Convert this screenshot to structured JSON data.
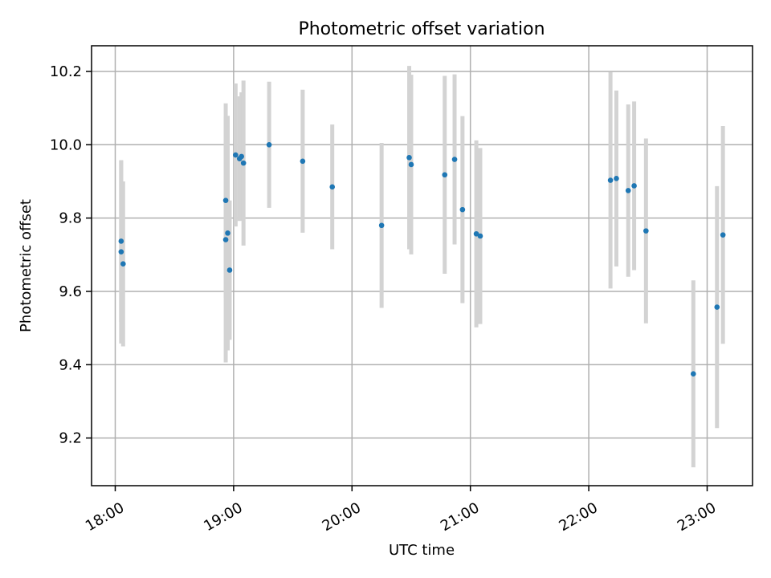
{
  "chart_data": {
    "type": "scatter",
    "title": "Photometric offset variation",
    "xlabel": "UTC time",
    "ylabel": "Photometric offset",
    "x_ticks": [
      "18:00",
      "19:00",
      "20:00",
      "21:00",
      "22:00",
      "23:00"
    ],
    "y_ticks": [
      "9.2",
      "9.4",
      "9.6",
      "9.8",
      "10.0",
      "10.2"
    ],
    "xlim": [
      "17:48",
      "23:23"
    ],
    "ylim": [
      9.07,
      10.27
    ],
    "grid": true,
    "series": [
      {
        "points": [
          {
            "x": "18:03",
            "y": 9.708,
            "err": 0.25
          },
          {
            "x": "18:03",
            "y": 9.737,
            "err": 0.22
          },
          {
            "x": "18:04",
            "y": 9.675,
            "err": 0.225
          },
          {
            "x": "18:56",
            "y": 9.848,
            "err": 0.265
          },
          {
            "x": "18:56",
            "y": 9.741,
            "err": 0.335
          },
          {
            "x": "18:57",
            "y": 9.759,
            "err": 0.32
          },
          {
            "x": "18:58",
            "y": 9.658,
            "err": 0.19
          },
          {
            "x": "19:01",
            "y": 9.972,
            "err": 0.195
          },
          {
            "x": "19:03",
            "y": 9.962,
            "err": 0.17
          },
          {
            "x": "19:04",
            "y": 9.968,
            "err": 0.175
          },
          {
            "x": "19:05",
            "y": 9.95,
            "err": 0.225
          },
          {
            "x": "19:18",
            "y": 10.0,
            "err": 0.172
          },
          {
            "x": "19:35",
            "y": 9.955,
            "err": 0.195
          },
          {
            "x": "19:50",
            "y": 9.885,
            "err": 0.17
          },
          {
            "x": "20:15",
            "y": 9.78,
            "err": 0.225
          },
          {
            "x": "20:29",
            "y": 9.965,
            "err": 0.25
          },
          {
            "x": "20:30",
            "y": 9.946,
            "err": 0.245
          },
          {
            "x": "20:47",
            "y": 9.918,
            "err": 0.27
          },
          {
            "x": "20:52",
            "y": 9.96,
            "err": 0.232
          },
          {
            "x": "20:56",
            "y": 9.823,
            "err": 0.255
          },
          {
            "x": "21:03",
            "y": 9.757,
            "err": 0.255
          },
          {
            "x": "21:05",
            "y": 9.751,
            "err": 0.24
          },
          {
            "x": "22:11",
            "y": 9.903,
            "err": 0.295
          },
          {
            "x": "22:14",
            "y": 9.908,
            "err": 0.24
          },
          {
            "x": "22:20",
            "y": 9.875,
            "err": 0.235
          },
          {
            "x": "22:23",
            "y": 9.888,
            "err": 0.23
          },
          {
            "x": "22:29",
            "y": 9.765,
            "err": 0.252
          },
          {
            "x": "22:53",
            "y": 9.375,
            "err": 0.255
          },
          {
            "x": "23:05",
            "y": 9.557,
            "err": 0.33
          },
          {
            "x": "23:08",
            "y": 9.754,
            "err": 0.297
          }
        ]
      }
    ],
    "colors": {
      "point": "#1f77b4",
      "errorbar": "#d3d3d3",
      "grid": "#b0b0b0"
    }
  }
}
